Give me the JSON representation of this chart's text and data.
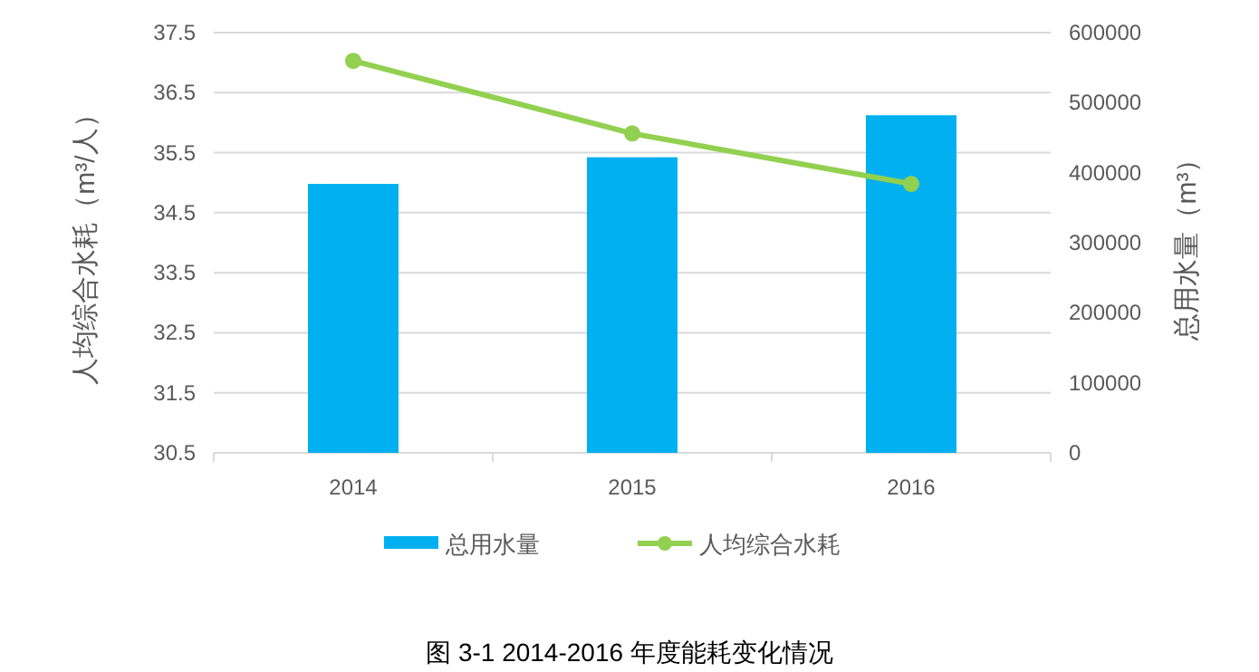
{
  "chart_data": {
    "type": "bar",
    "title": "图 3-1 2014-2016 年度能耗变化情况",
    "categories": [
      "2014",
      "2015",
      "2016"
    ],
    "ylabel": "人均综合水耗（m³/人）",
    "y2label": "总用水量（m³）",
    "ylim": [
      30.5,
      37.5
    ],
    "yticks": [
      30.5,
      31.5,
      32.5,
      33.5,
      34.5,
      35.5,
      36.5,
      37.5
    ],
    "y2lim": [
      0,
      600000
    ],
    "y2ticks": [
      0,
      100000,
      200000,
      300000,
      400000,
      500000,
      600000
    ],
    "grid": "y",
    "legend": "bottom",
    "marker": "circle",
    "series": [
      {
        "name": "总用水量",
        "axis": "y2",
        "color": "#00b0f0",
        "values": [
          384000,
          422000,
          482000
        ]
      },
      {
        "name": "人均综合水耗",
        "type": "line",
        "axis": "y",
        "color": "#92d050",
        "values": [
          37.03,
          35.82,
          34.98
        ]
      }
    ]
  }
}
